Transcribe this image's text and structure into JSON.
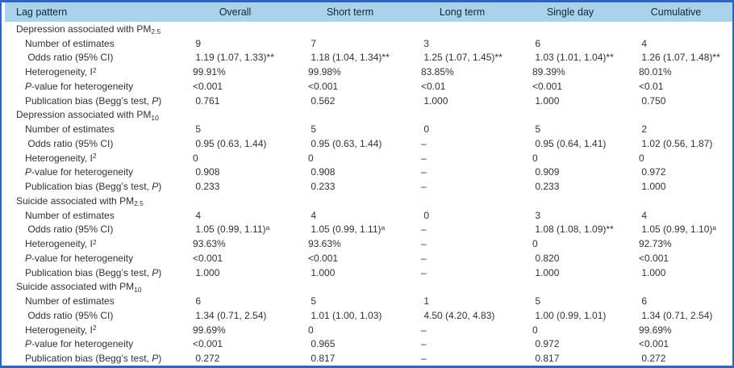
{
  "colors": {
    "border": "#2d65c0",
    "header_bg": "#a9d2eb",
    "header_text": "#14243a",
    "body_text": "#313131"
  },
  "table": {
    "columns": [
      "Lag pattern",
      "Overall",
      "Short term",
      "Long term",
      "Single day",
      "Cumulative"
    ],
    "groups": [
      {
        "title": [
          {
            "t": "Depression associated with PM"
          },
          {
            "t": "2.5",
            "s": "sub"
          }
        ],
        "rows": [
          {
            "label": [
              {
                "t": "Number of estimates"
              }
            ],
            "values": [
              " 9",
              " 7",
              " 3",
              " 6",
              " 4"
            ]
          },
          {
            "label": [
              {
                "t": " Odds ratio (95% CI)"
              }
            ],
            "values": [
              " 1.19 (1.07, 1.33)**",
              " 1.18 (1.04, 1.34)**",
              " 1.25 (1.07, 1.45)**",
              " 1.03 (1.01, 1.04)**",
              " 1.26 (1.07, 1.48)**"
            ]
          },
          {
            "label": [
              {
                "t": "Heterogeneity, I"
              },
              {
                "t": "2",
                "s": "sup"
              }
            ],
            "values": [
              "99.91%",
              "99.98%",
              "83.85%",
              "89.39%",
              "80.01%"
            ]
          },
          {
            "label": [
              {
                "t": "P",
                "s": "it"
              },
              {
                "t": "-value for heterogeneity"
              }
            ],
            "values": [
              "<0.001",
              "<0.001",
              "<0.01",
              "<0.001",
              "<0.01"
            ]
          },
          {
            "label": [
              {
                "t": "Publication bias (Begg’s test, "
              },
              {
                "t": "P",
                "s": "it"
              },
              {
                "t": ")"
              }
            ],
            "values": [
              " 0.761",
              " 0.562",
              " 1.000",
              " 1.000",
              " 0.750"
            ]
          }
        ]
      },
      {
        "title": [
          {
            "t": "Depression associated with PM"
          },
          {
            "t": "10",
            "s": "sub"
          }
        ],
        "rows": [
          {
            "label": [
              {
                "t": "Number of estimates"
              }
            ],
            "values": [
              " 5",
              " 5",
              " 0",
              " 5",
              " 2"
            ]
          },
          {
            "label": [
              {
                "t": " Odds ratio (95% CI)"
              }
            ],
            "values": [
              " 0.95 (0.63, 1.44)",
              " 0.95 (0.63, 1.44)",
              "–",
              " 0.95 (0.64, 1.41)",
              " 1.02 (0.56, 1.87)"
            ]
          },
          {
            "label": [
              {
                "t": "Heterogeneity, I"
              },
              {
                "t": "2",
                "s": "sup"
              }
            ],
            "values": [
              "0",
              "0",
              "–",
              "0",
              "0"
            ]
          },
          {
            "label": [
              {
                "t": "P",
                "s": "it"
              },
              {
                "t": "-value for heterogeneity"
              }
            ],
            "values": [
              " 0.908",
              " 0.908",
              "–",
              " 0.909",
              " 0.972"
            ]
          },
          {
            "label": [
              {
                "t": "Publication bias (Begg’s test, "
              },
              {
                "t": "P",
                "s": "it"
              },
              {
                "t": ")"
              }
            ],
            "values": [
              " 0.233",
              " 0.233",
              "–",
              " 0.233",
              " 1.000"
            ]
          }
        ]
      },
      {
        "title": [
          {
            "t": "Suicide associated with PM"
          },
          {
            "t": "2.5",
            "s": "sub"
          }
        ],
        "rows": [
          {
            "label": [
              {
                "t": "Number of estimates"
              }
            ],
            "values": [
              " 4",
              " 4",
              " 0",
              " 3",
              " 4"
            ]
          },
          {
            "label": [
              {
                "t": " Odds ratio (95% CI)"
              }
            ],
            "values": [
              " 1.05 (0.99, 1.11)^a",
              " 1.05 (0.99, 1.11)^a",
              "–",
              " 1.08 (1.08, 1.09)**",
              " 1.05 (0.99, 1.10)^a"
            ]
          },
          {
            "label": [
              {
                "t": "Heterogeneity, I"
              },
              {
                "t": "2",
                "s": "sup"
              }
            ],
            "values": [
              "93.63%",
              "93.63%",
              "–",
              "0",
              "92.73%"
            ]
          },
          {
            "label": [
              {
                "t": "P",
                "s": "it"
              },
              {
                "t": "-value for heterogeneity"
              }
            ],
            "values": [
              "<0.001",
              "<0.001",
              "–",
              " 0.820",
              "<0.001"
            ]
          },
          {
            "label": [
              {
                "t": "Publication bias (Begg’s test, "
              },
              {
                "t": "P",
                "s": "it"
              },
              {
                "t": ")"
              }
            ],
            "values": [
              " 1.000",
              " 1.000",
              "–",
              " 1.000",
              " 1.000"
            ]
          }
        ]
      },
      {
        "title": [
          {
            "t": "Suicide associated with PM"
          },
          {
            "t": "10",
            "s": "sub"
          }
        ],
        "rows": [
          {
            "label": [
              {
                "t": "Number of estimates"
              }
            ],
            "values": [
              " 6",
              " 5",
              " 1",
              " 5",
              " 6"
            ]
          },
          {
            "label": [
              {
                "t": " Odds ratio (95% CI)"
              }
            ],
            "values": [
              " 1.34 (0.71, 2.54)",
              " 1.01 (1.00, 1.03)",
              " 4.50 (4.20, 4.83)",
              " 1.00 (0.99, 1.01)",
              " 1.34 (0.71, 2.54)"
            ]
          },
          {
            "label": [
              {
                "t": "Heterogeneity, I"
              },
              {
                "t": "2",
                "s": "sup"
              }
            ],
            "values": [
              "99.69%",
              "0",
              "–",
              "0",
              "99.69%"
            ]
          },
          {
            "label": [
              {
                "t": "P",
                "s": "it"
              },
              {
                "t": "-value for heterogeneity"
              }
            ],
            "values": [
              "<0.001",
              " 0.965",
              "–",
              " 0.972",
              "<0.001"
            ]
          },
          {
            "label": [
              {
                "t": "Publication bias (Begg’s test, "
              },
              {
                "t": "P",
                "s": "it"
              },
              {
                "t": ")"
              }
            ],
            "values": [
              " 0.272",
              " 0.817",
              "–",
              " 0.817",
              " 0.272"
            ]
          }
        ]
      }
    ]
  }
}
